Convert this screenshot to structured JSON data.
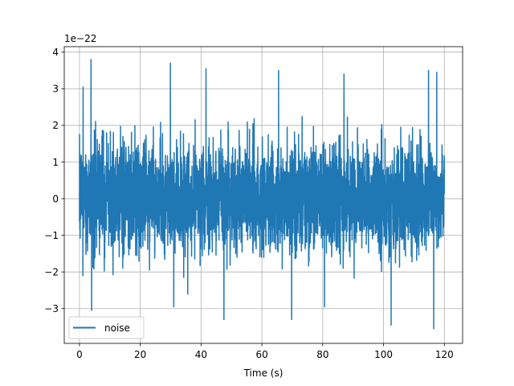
{
  "chart_data": {
    "type": "line",
    "title": "",
    "xlabel": "Time (s)",
    "ylabel": "",
    "y_scale_label": "1e−22",
    "xlim": [
      -5,
      126
    ],
    "ylim": [
      -3.95,
      4.15
    ],
    "xticks": [
      0,
      20,
      40,
      60,
      80,
      100,
      120
    ],
    "yticks": [
      -3,
      -2,
      -1,
      0,
      1,
      2,
      3,
      4
    ],
    "xtick_labels": [
      "0",
      "20",
      "40",
      "60",
      "80",
      "100",
      "120"
    ],
    "ytick_labels": [
      "−3",
      "−2",
      "−1",
      "0",
      "1",
      "2",
      "3",
      "4"
    ],
    "grid": true,
    "legend_position": "lower-left",
    "series": [
      {
        "name": "noise",
        "color": "#1f77b4",
        "x_start": 0,
        "x_end": 120,
        "typical_amplitude": 1.8,
        "peaks": [
          {
            "x": 1.2,
            "y": 3.05
          },
          {
            "x": 3.8,
            "y": 3.8
          },
          {
            "x": 4.0,
            "y": -3.05
          },
          {
            "x": 29.9,
            "y": 3.7
          },
          {
            "x": 31.0,
            "y": -2.95
          },
          {
            "x": 41.6,
            "y": 3.55
          },
          {
            "x": 47.5,
            "y": -3.3
          },
          {
            "x": 65.5,
            "y": 3.5
          },
          {
            "x": 69.8,
            "y": -3.3
          },
          {
            "x": 80.6,
            "y": -2.95
          },
          {
            "x": 87.0,
            "y": 3.4
          },
          {
            "x": 102.5,
            "y": -3.45
          },
          {
            "x": 114.8,
            "y": 3.5
          },
          {
            "x": 116.5,
            "y": -3.55
          },
          {
            "x": 117.5,
            "y": 3.45
          }
        ]
      }
    ]
  }
}
